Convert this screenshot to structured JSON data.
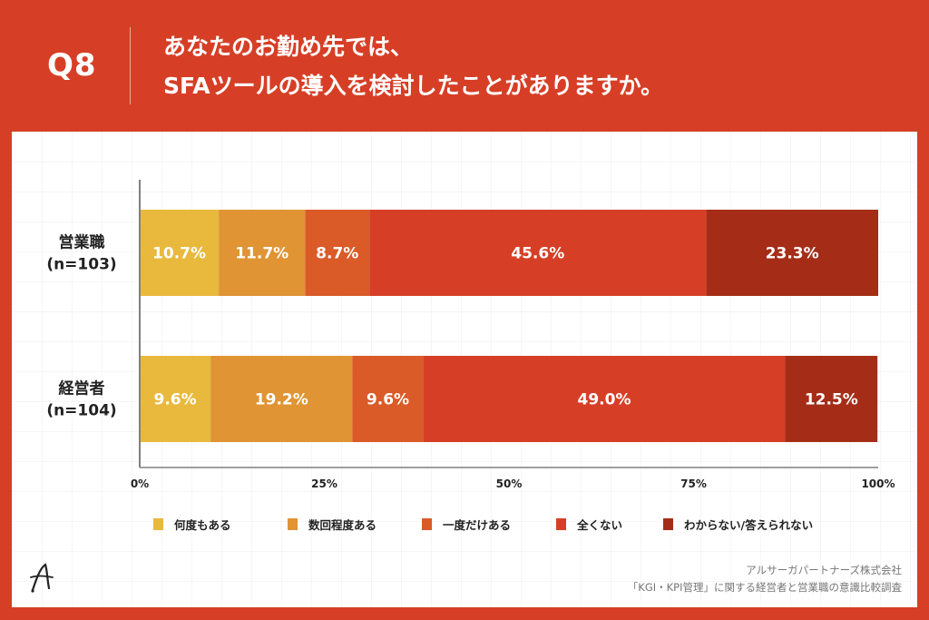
{
  "header": {
    "question_number": "Q8",
    "title_line1": "あなたのお勤め先では、",
    "title_line2": "SFAツールの導入を検討したことがありますか。"
  },
  "colors": {
    "background": "#d63f26",
    "panel": "#ffffff",
    "series": [
      "#e8b93c",
      "#e09434",
      "#da5b28",
      "#d63f26",
      "#a52d18"
    ]
  },
  "chart_data": {
    "type": "bar",
    "orientation": "horizontal",
    "stacked": true,
    "percent": true,
    "categories": [
      {
        "label": "営業職",
        "n": "(n=103)"
      },
      {
        "label": "経営者",
        "n": "(n=104)"
      }
    ],
    "series": [
      {
        "name": "何度もある",
        "values": [
          10.7,
          9.6
        ],
        "labels": [
          "10.7%",
          "9.6%"
        ]
      },
      {
        "name": "数回程度ある",
        "values": [
          11.7,
          19.2
        ],
        "labels": [
          "11.7%",
          "19.2%"
        ]
      },
      {
        "name": "一度だけある",
        "values": [
          8.7,
          9.6
        ],
        "labels": [
          "8.7%",
          "9.6%"
        ]
      },
      {
        "name": "全くない",
        "values": [
          45.6,
          49.0
        ],
        "labels": [
          "45.6%",
          "49.0%"
        ]
      },
      {
        "name": "わからない/答えられない",
        "values": [
          23.3,
          12.5
        ],
        "labels": [
          "23.3%",
          "12.5%"
        ]
      }
    ],
    "xlim": [
      0,
      100
    ],
    "xticks": [
      0,
      25,
      50,
      75,
      100
    ],
    "xtick_labels": [
      "0%",
      "25%",
      "50%",
      "75%",
      "100%"
    ],
    "legend_position": "bottom",
    "grid": false
  },
  "footer": {
    "company": "アルサーガパートナーズ株式会社",
    "survey": "「KGI・KPI管理」に関する経営者と営業職の意識比較調査",
    "logo_text": "A"
  }
}
